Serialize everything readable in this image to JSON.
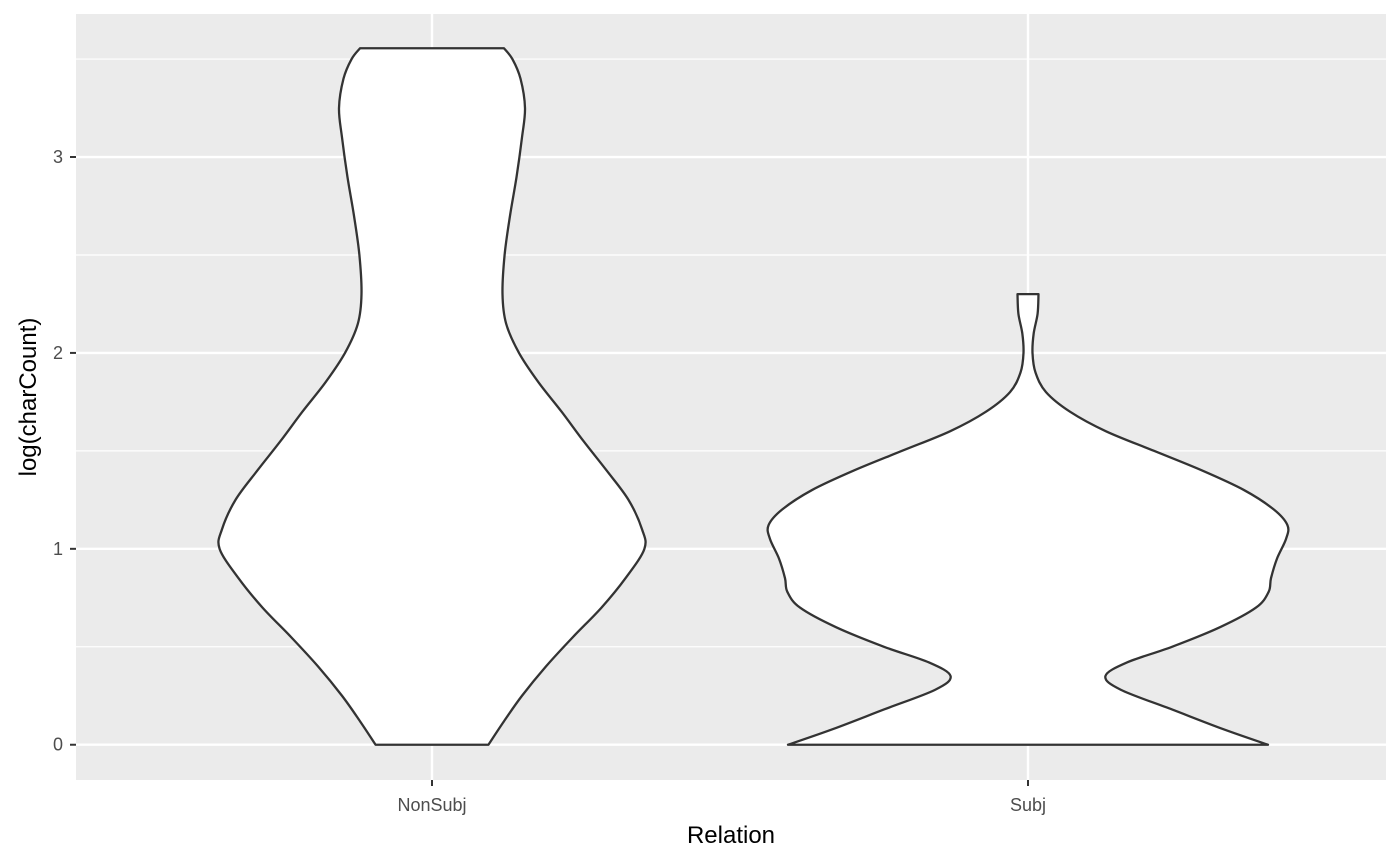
{
  "chart_data": {
    "type": "violin",
    "title": "",
    "xlabel": "Relation",
    "ylabel": "log(charCount)",
    "categories": [
      "NonSubj",
      "Subj"
    ],
    "ylim": [
      -0.18,
      3.73
    ],
    "yticks": [
      0,
      1,
      2,
      3
    ],
    "grid": true,
    "legend": "none",
    "colors": {
      "panel": "#ebebeb",
      "grid": "#ffffff",
      "violin_fill": "#ffffff",
      "violin_stroke": "#333333",
      "tick": "#333333"
    },
    "series": [
      {
        "category": "NonSubj",
        "y_range": [
          0,
          3.555
        ],
        "density_profile": [
          [
            0.0,
            0.188
          ],
          [
            0.12,
            0.24
          ],
          [
            0.25,
            0.3
          ],
          [
            0.4,
            0.38
          ],
          [
            0.55,
            0.47
          ],
          [
            0.7,
            0.565
          ],
          [
            0.85,
            0.645
          ],
          [
            1.0,
            0.708
          ],
          [
            1.1,
            0.7
          ],
          [
            1.25,
            0.655
          ],
          [
            1.4,
            0.582
          ],
          [
            1.55,
            0.505
          ],
          [
            1.7,
            0.432
          ],
          [
            1.85,
            0.355
          ],
          [
            2.0,
            0.29
          ],
          [
            2.15,
            0.247
          ],
          [
            2.3,
            0.235
          ],
          [
            2.5,
            0.242
          ],
          [
            2.7,
            0.26
          ],
          [
            2.9,
            0.282
          ],
          [
            3.1,
            0.3
          ],
          [
            3.25,
            0.31
          ],
          [
            3.4,
            0.295
          ],
          [
            3.5,
            0.268
          ],
          [
            3.555,
            0.24
          ]
        ]
      },
      {
        "category": "Subj",
        "y_range": [
          0,
          2.3
        ],
        "density_profile": [
          [
            0.0,
            0.8
          ],
          [
            0.08,
            0.65
          ],
          [
            0.18,
            0.48
          ],
          [
            0.28,
            0.31
          ],
          [
            0.35,
            0.258
          ],
          [
            0.42,
            0.33
          ],
          [
            0.5,
            0.48
          ],
          [
            0.6,
            0.64
          ],
          [
            0.7,
            0.76
          ],
          [
            0.78,
            0.802
          ],
          [
            0.85,
            0.81
          ],
          [
            0.95,
            0.83
          ],
          [
            1.05,
            0.86
          ],
          [
            1.12,
            0.865
          ],
          [
            1.2,
            0.82
          ],
          [
            1.3,
            0.72
          ],
          [
            1.4,
            0.58
          ],
          [
            1.5,
            0.42
          ],
          [
            1.6,
            0.26
          ],
          [
            1.7,
            0.14
          ],
          [
            1.8,
            0.06
          ],
          [
            1.9,
            0.025
          ],
          [
            2.0,
            0.015
          ],
          [
            2.1,
            0.019
          ],
          [
            2.2,
            0.032
          ],
          [
            2.3,
            0.035
          ]
        ]
      }
    ]
  }
}
